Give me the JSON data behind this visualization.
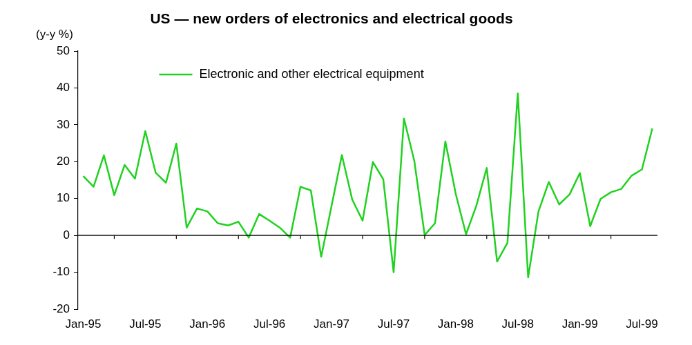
{
  "chart_data": {
    "type": "line",
    "title": "US — new orders of electronics and electrical goods",
    "ylabel": "(y-y %)",
    "categories": [
      "Jan-95",
      null,
      null,
      null,
      null,
      null,
      "Jul-95",
      null,
      null,
      null,
      null,
      null,
      "Jan-96",
      null,
      null,
      null,
      null,
      null,
      "Jul-96",
      null,
      null,
      null,
      null,
      null,
      "Jan-97",
      null,
      null,
      null,
      null,
      null,
      "Jul-97",
      null,
      null,
      null,
      null,
      null,
      "Jan-98",
      null,
      null,
      null,
      null,
      null,
      "Jul-98",
      null,
      null,
      null,
      null,
      null,
      "Jan-99",
      null,
      null,
      null,
      null,
      null,
      "Jul-99",
      null
    ],
    "series": [
      {
        "name": "Electronic and other electrical equipment",
        "color": "#1fd21f",
        "values": [
          16.1,
          13.2,
          21.7,
          10.9,
          19.1,
          15.4,
          28.3,
          17.0,
          14.3,
          24.9,
          2.1,
          7.3,
          6.5,
          3.3,
          2.7,
          3.7,
          -0.6,
          5.8,
          4.0,
          2.1,
          -0.6,
          13.2,
          12.2,
          -5.8,
          8.0,
          21.8,
          9.7,
          4.0,
          19.9,
          15.2,
          -10.0,
          31.7,
          20.2,
          0.1,
          3.3,
          25.5,
          11.3,
          0.3,
          8.1,
          18.3,
          -7.1,
          -2.0,
          38.5,
          -11.4,
          6.5,
          14.5,
          8.4,
          11.1,
          16.9,
          2.5,
          9.9,
          11.7,
          12.6,
          16.2,
          17.9,
          29.0
        ]
      }
    ],
    "ylim": [
      -20,
      50
    ],
    "yticks": [
      -20,
      -10,
      0,
      10,
      20,
      30,
      40,
      50
    ],
    "grid": false,
    "ref_lines": [
      {
        "axis": "y",
        "value": 0,
        "color": "#000000"
      }
    ],
    "legend": "top left",
    "marker": "none",
    "line_style": "solid"
  }
}
